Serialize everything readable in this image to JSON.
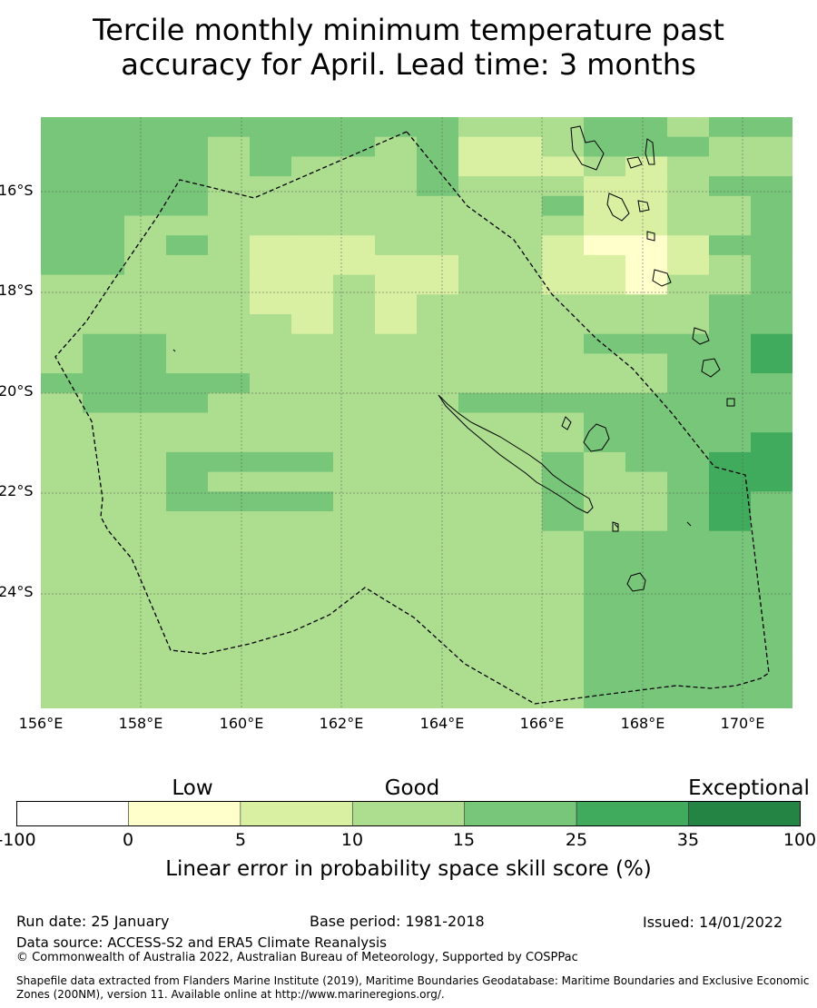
{
  "title_line1": "Tercile monthly minimum temperature past",
  "title_line2": "accuracy for April. Lead time: 3 months",
  "axes": {
    "lat_labels": [
      "16°S",
      "18°S",
      "20°S",
      "22°S",
      "24°S"
    ],
    "lon_labels": [
      "156°E",
      "158°E",
      "160°E",
      "162°E",
      "164°E",
      "166°E",
      "168°E",
      "170°E"
    ]
  },
  "colorbar": {
    "category_labels": [
      "Low",
      "Good",
      "Exceptional"
    ],
    "tick_labels": [
      "-100",
      "0",
      "5",
      "10",
      "15",
      "25",
      "35",
      "100"
    ],
    "colors": [
      "#ffffff",
      "#ffffcc",
      "#d9f0a3",
      "#addd8e",
      "#78c679",
      "#41ab5d",
      "#238443"
    ],
    "title": "Linear error in probability space skill score (%)"
  },
  "chart_data": {
    "type": "heatmap",
    "levels": [
      [
        4,
        4,
        4,
        4,
        4,
        4,
        4,
        4,
        4,
        4,
        3,
        3,
        3,
        4,
        4,
        3,
        4,
        4
      ],
      [
        4,
        4,
        4,
        4,
        3,
        4,
        4,
        4,
        3,
        4,
        2,
        2,
        3,
        4,
        4,
        4,
        3,
        3
      ],
      [
        4,
        4,
        4,
        4,
        3,
        4,
        3,
        3,
        3,
        4,
        2,
        2,
        2,
        3,
        2,
        3,
        3,
        3
      ],
      [
        4,
        4,
        4,
        4,
        3,
        3,
        3,
        3,
        3,
        4,
        3,
        3,
        3,
        2,
        2,
        3,
        4,
        4
      ],
      [
        4,
        4,
        4,
        4,
        3,
        3,
        3,
        3,
        3,
        3,
        3,
        3,
        4,
        2,
        2,
        3,
        3,
        4
      ],
      [
        4,
        4,
        3,
        3,
        3,
        3,
        3,
        3,
        3,
        3,
        3,
        3,
        3,
        2,
        2,
        3,
        3,
        4
      ],
      [
        4,
        4,
        3,
        4,
        3,
        2,
        2,
        2,
        3,
        3,
        3,
        3,
        2,
        1,
        1,
        2,
        4,
        4
      ],
      [
        4,
        4,
        3,
        3,
        3,
        2,
        2,
        2,
        2,
        2,
        3,
        3,
        2,
        2,
        1,
        2,
        3,
        4
      ],
      [
        3,
        3,
        3,
        3,
        3,
        2,
        2,
        3,
        2,
        2,
        3,
        3,
        2,
        2,
        1,
        3,
        3,
        4
      ],
      [
        3,
        3,
        3,
        3,
        3,
        2,
        2,
        3,
        2,
        3,
        3,
        3,
        3,
        3,
        3,
        3,
        4,
        4
      ],
      [
        3,
        3,
        3,
        3,
        3,
        3,
        2,
        3,
        2,
        3,
        3,
        3,
        3,
        3,
        3,
        3,
        4,
        4
      ],
      [
        3,
        4,
        4,
        3,
        3,
        3,
        3,
        3,
        3,
        3,
        3,
        3,
        3,
        4,
        4,
        4,
        4,
        5
      ],
      [
        3,
        4,
        4,
        3,
        3,
        3,
        3,
        3,
        3,
        3,
        3,
        3,
        3,
        3,
        3,
        4,
        4,
        5
      ],
      [
        4,
        4,
        4,
        4,
        4,
        3,
        3,
        3,
        3,
        3,
        3,
        3,
        3,
        3,
        3,
        4,
        4,
        4
      ],
      [
        3,
        4,
        4,
        4,
        3,
        3,
        3,
        3,
        3,
        3,
        4,
        4,
        4,
        4,
        4,
        4,
        4,
        4
      ],
      [
        3,
        3,
        3,
        3,
        3,
        3,
        3,
        3,
        3,
        3,
        3,
        3,
        3,
        4,
        4,
        4,
        4,
        4
      ],
      [
        3,
        3,
        3,
        3,
        3,
        3,
        3,
        3,
        3,
        3,
        3,
        3,
        3,
        4,
        4,
        4,
        4,
        5
      ],
      [
        3,
        3,
        3,
        4,
        4,
        4,
        4,
        3,
        3,
        3,
        3,
        3,
        4,
        3,
        4,
        4,
        5,
        5
      ],
      [
        3,
        3,
        3,
        4,
        3,
        3,
        3,
        3,
        3,
        3,
        3,
        3,
        4,
        3,
        3,
        4,
        5,
        5
      ],
      [
        3,
        3,
        3,
        4,
        4,
        4,
        4,
        3,
        3,
        3,
        3,
        3,
        4,
        3,
        3,
        4,
        5,
        4
      ],
      [
        3,
        3,
        3,
        3,
        3,
        3,
        3,
        3,
        3,
        3,
        3,
        3,
        4,
        3,
        3,
        4,
        5,
        4
      ],
      [
        3,
        3,
        3,
        3,
        3,
        3,
        3,
        3,
        3,
        3,
        3,
        3,
        3,
        4,
        4,
        4,
        4,
        4
      ],
      [
        3,
        3,
        3,
        3,
        3,
        3,
        3,
        3,
        3,
        3,
        3,
        3,
        3,
        4,
        4,
        4,
        4,
        4
      ],
      [
        3,
        3,
        3,
        3,
        3,
        3,
        3,
        3,
        3,
        3,
        3,
        3,
        3,
        4,
        4,
        4,
        4,
        4
      ],
      [
        3,
        3,
        3,
        3,
        3,
        3,
        3,
        3,
        3,
        3,
        3,
        3,
        3,
        4,
        4,
        4,
        4,
        4
      ],
      [
        3,
        3,
        3,
        3,
        3,
        3,
        3,
        3,
        3,
        3,
        3,
        3,
        3,
        4,
        4,
        4,
        4,
        4
      ],
      [
        3,
        3,
        3,
        3,
        3,
        3,
        3,
        3,
        3,
        3,
        3,
        3,
        3,
        4,
        4,
        4,
        4,
        4
      ],
      [
        3,
        3,
        3,
        3,
        3,
        3,
        3,
        3,
        3,
        3,
        3,
        3,
        3,
        4,
        4,
        4,
        4,
        4
      ],
      [
        3,
        3,
        3,
        3,
        3,
        3,
        3,
        3,
        3,
        3,
        3,
        3,
        3,
        4,
        4,
        4,
        4,
        4
      ],
      [
        3,
        3,
        3,
        3,
        3,
        3,
        3,
        3,
        3,
        3,
        3,
        3,
        3,
        4,
        4,
        4,
        4,
        4
      ]
    ]
  },
  "footer": {
    "run_date": "Run date: 25 January",
    "base_period": "Base period: 1981-2018",
    "issued": "Issued: 14/01/2022",
    "data_source": "Data source: ACCESS-S2 and ERA5 Climate Reanalysis",
    "copyright": "© Commonwealth of Australia 2022, Australian Bureau of Meteorology, Supported by COSPPac",
    "shapefile_line1": "Shapefile data extracted from Flanders Marine Institute (2019), Maritime Boundaries Geodatabase: Maritime Boundaries and Exclusive Economic",
    "shapefile_line2": "Zones (200NM), version 11. Available online at http://www.marineregions.org/."
  }
}
